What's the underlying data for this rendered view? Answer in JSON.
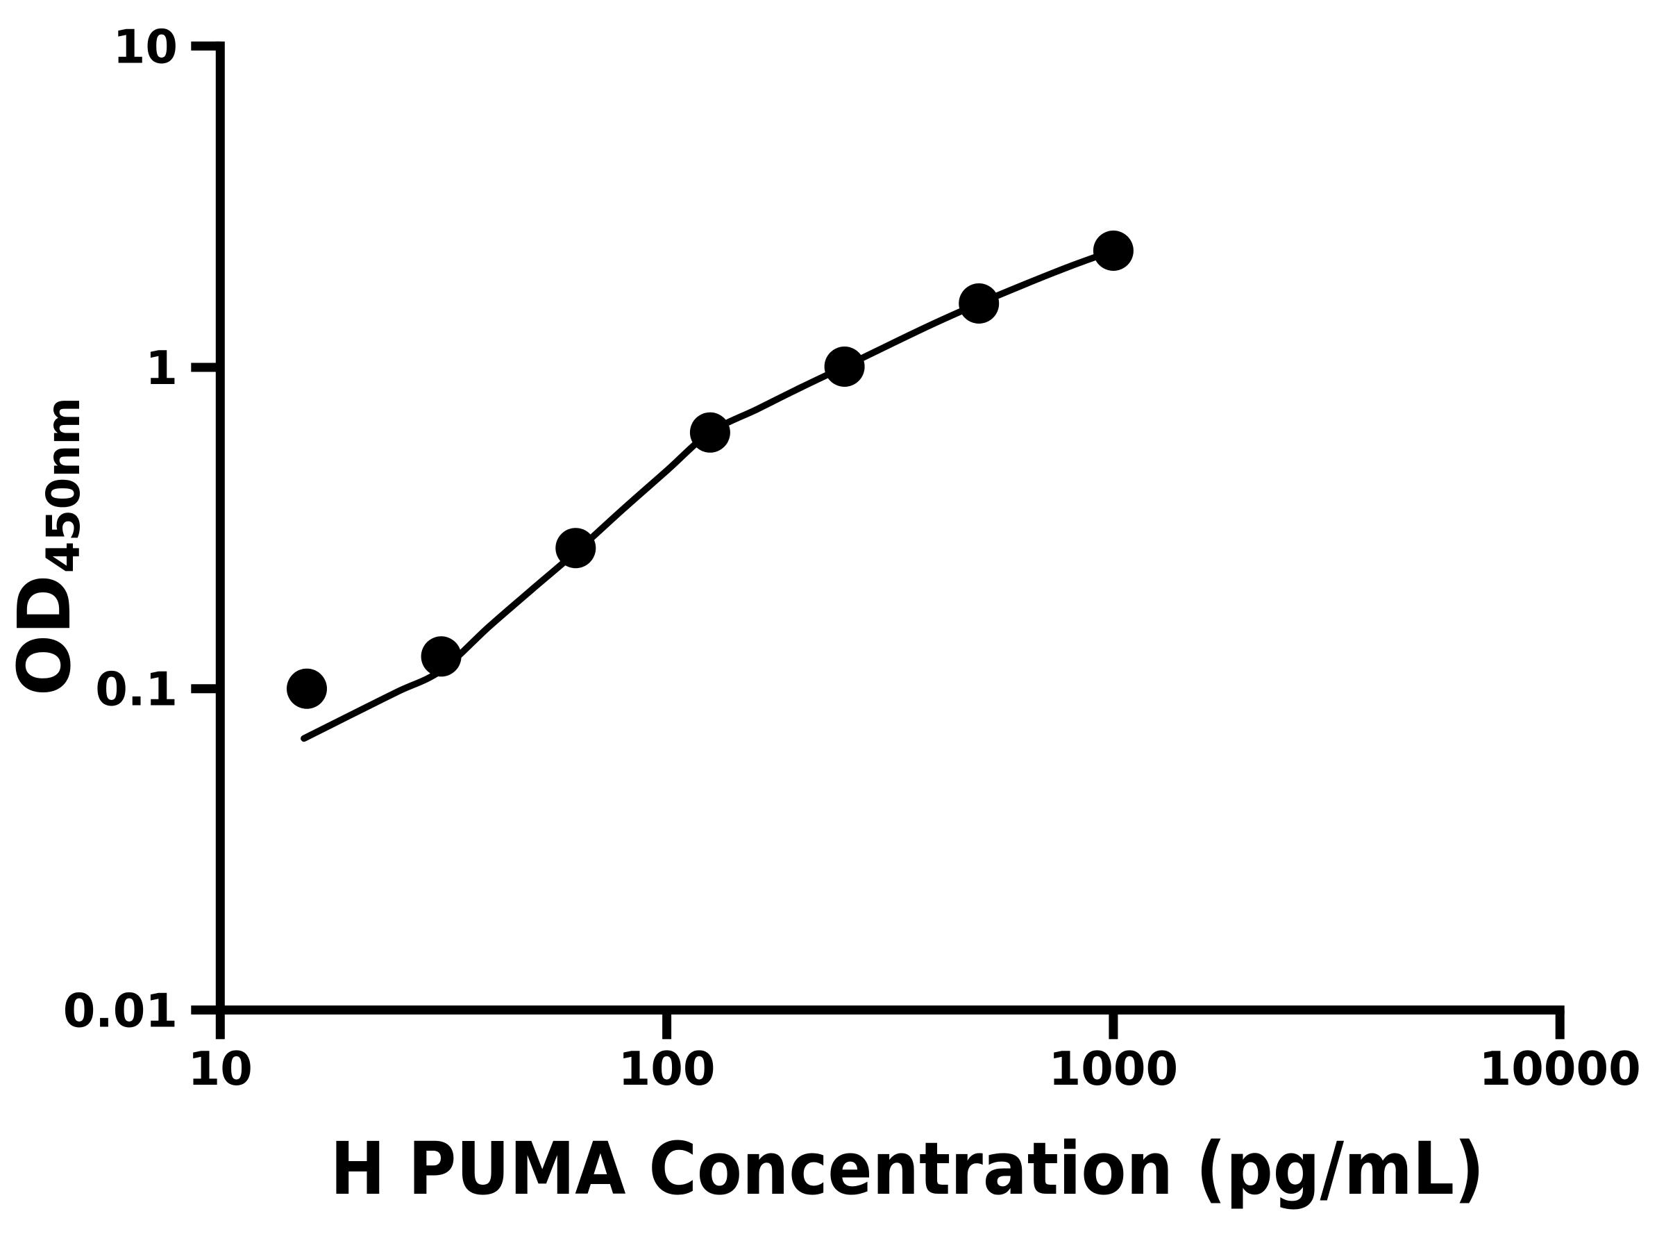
{
  "page": {
    "background": "#ffffff"
  },
  "chart_data": {
    "type": "scatter",
    "title": "",
    "xlabel": "H PUMA Concentration (pg/mL)",
    "ylabel_main": "OD",
    "ylabel_sub": "450nm",
    "x_scale": "log",
    "y_scale": "log",
    "xlim": [
      10,
      10000
    ],
    "ylim": [
      0.01,
      10
    ],
    "grid": false,
    "legend": "none",
    "x_ticks": [
      {
        "value": 10,
        "label": "10"
      },
      {
        "value": 100,
        "label": "100"
      },
      {
        "value": 1000,
        "label": "1000"
      },
      {
        "value": 10000,
        "label": "10000"
      }
    ],
    "y_ticks": [
      {
        "value": 10,
        "label": "10"
      },
      {
        "value": 1,
        "label": "1"
      },
      {
        "value": 0.1,
        "label": "0.1"
      },
      {
        "value": 0.01,
        "label": "0.01"
      }
    ],
    "series": [
      {
        "name": "standard-data-points",
        "type": "scatter",
        "marker": "circle",
        "color": "#000000",
        "x": [
          15.625,
          31.25,
          62.5,
          125,
          250,
          500,
          1000
        ],
        "y": [
          0.1,
          0.126,
          0.274,
          0.627,
          1.005,
          1.581,
          2.307
        ]
      },
      {
        "name": "fitted-curve",
        "type": "line",
        "color": "#000000",
        "points": [
          [
            15.4,
            0.07
          ],
          [
            20,
            0.084
          ],
          [
            25,
            0.098
          ],
          [
            31.25,
            0.114
          ],
          [
            40,
            0.156
          ],
          [
            50,
            0.204
          ],
          [
            62.5,
            0.266
          ],
          [
            80,
            0.363
          ],
          [
            100,
            0.477
          ],
          [
            125,
            0.627
          ],
          [
            160,
            0.743
          ],
          [
            200,
            0.867
          ],
          [
            250,
            1.005
          ],
          [
            320,
            1.188
          ],
          [
            400,
            1.377
          ],
          [
            500,
            1.581
          ],
          [
            640,
            1.824
          ],
          [
            800,
            2.064
          ],
          [
            1000,
            2.307
          ]
        ]
      }
    ],
    "colors": {
      "foreground": "#000000",
      "background": "#ffffff"
    }
  }
}
